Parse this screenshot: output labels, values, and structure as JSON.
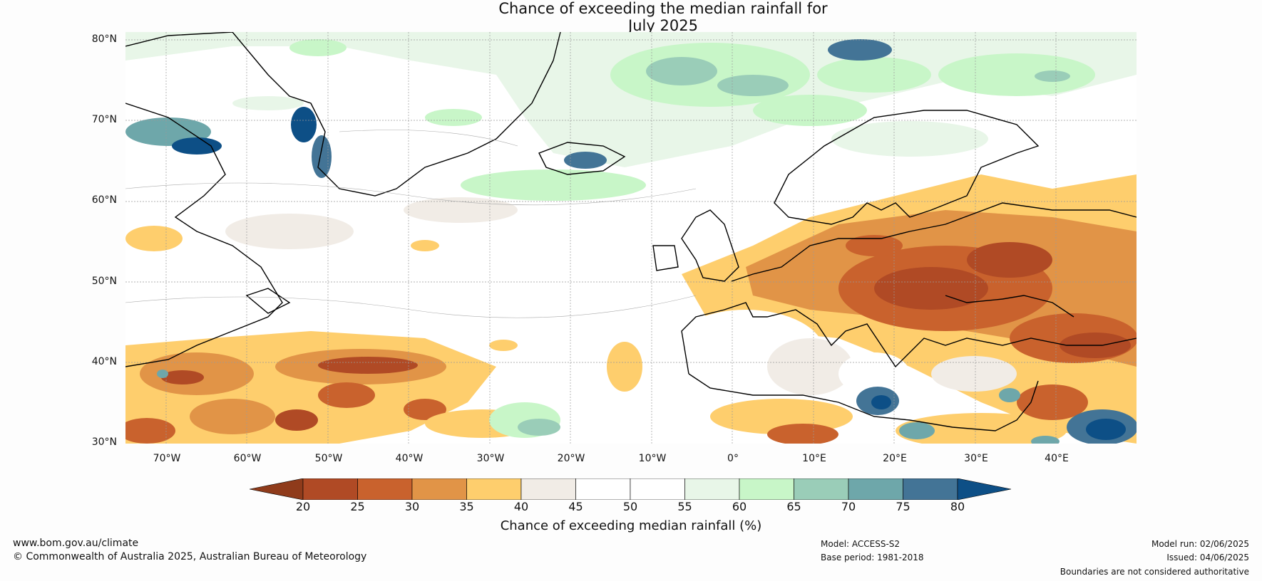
{
  "title_line1": "Chance of exceeding the median rainfall for",
  "title_line2": "July 2025",
  "map": {
    "lat_labels": [
      "80°N",
      "70°N",
      "60°N",
      "50°N",
      "40°N",
      "30°N"
    ],
    "lon_labels": [
      "70°W",
      "60°W",
      "50°W",
      "40°W",
      "30°W",
      "20°W",
      "10°W",
      "0°",
      "10°E",
      "20°E",
      "30°E",
      "40°E"
    ],
    "extent": {
      "lon_min": -75,
      "lon_max": 50,
      "lat_min": 30,
      "lat_max": 81
    }
  },
  "colorbar": {
    "ticks": [
      "20",
      "25",
      "30",
      "35",
      "40",
      "45",
      "50",
      "55",
      "60",
      "65",
      "70",
      "75",
      "80"
    ],
    "colors": [
      "#8f3b1b",
      "#b04a25",
      "#c9622d",
      "#e19447",
      "#fece6d",
      "#f1ece6",
      "#ffffff",
      "#ffffff",
      "#e8f6e8",
      "#c8f6c8",
      "#9acdb8",
      "#6ea7aa",
      "#437496",
      "#0d4f86"
    ],
    "label": "Chance of exceeding median rainfall (%)"
  },
  "footer": {
    "url": "www.bom.gov.au/climate",
    "copyright": "© Commonwealth of Australia 2025, Australian Bureau of Meteorology",
    "model": "Model: ACCESS-S2",
    "base_period": "Base period: 1981-2018",
    "model_run": "Model run: 02/06/2025",
    "issued": "Issued: 04/06/2025",
    "disclaimer": "Boundaries are not considered authoritative"
  }
}
